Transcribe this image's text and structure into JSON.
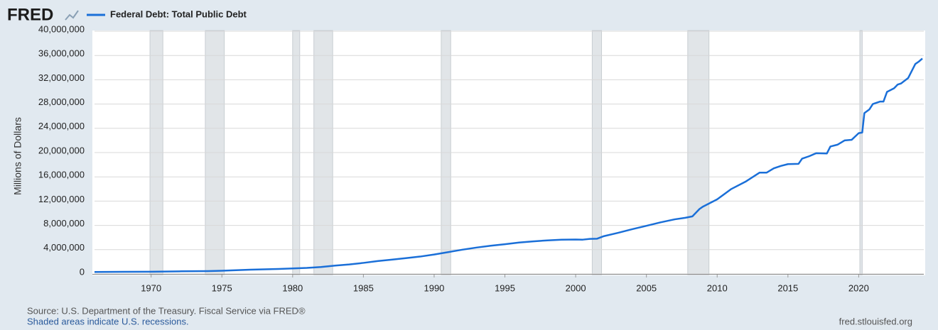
{
  "logo": "FRED",
  "chart_data": {
    "type": "line",
    "y_label": "Millions of Dollars",
    "x": [
      1966,
      1968,
      1970,
      1972,
      1974,
      1975,
      1977,
      1979,
      1980,
      1981,
      1982,
      1983,
      1984,
      1985,
      1986,
      1987,
      1988,
      1989,
      1990,
      1991,
      1992,
      1993,
      1994,
      1995,
      1996,
      1997,
      1998,
      1999,
      2000,
      2000.5,
      2001,
      2001.5,
      2002,
      2003,
      2004,
      2005,
      2006,
      2007,
      2007.75,
      2008.25,
      2008.75,
      2009,
      2010,
      2011,
      2012,
      2013,
      2013.5,
      2014,
      2014.5,
      2015,
      2015.75,
      2016,
      2016.5,
      2017,
      2017.75,
      2018,
      2018.5,
      2019,
      2019.5,
      2020,
      2020.25,
      2020.4,
      2020.75,
      2021,
      2021.5,
      2021.75,
      2022,
      2022.5,
      2022.75,
      2023,
      2023.5,
      2024,
      2024.25,
      2024.5
    ],
    "series": [
      {
        "name": "Federal Debt: Total Public Debt",
        "color": "#1a6fd8",
        "values": [
          320000,
          345000,
          370000,
          430000,
          475000,
          530000,
          700000,
          820000,
          900000,
          990000,
          1140000,
          1380000,
          1570000,
          1820000,
          2120000,
          2350000,
          2600000,
          2860000,
          3200000,
          3600000,
          4000000,
          4350000,
          4650000,
          4900000,
          5180000,
          5370000,
          5530000,
          5650000,
          5680000,
          5650000,
          5770000,
          5800000,
          6230000,
          6780000,
          7380000,
          7930000,
          8500000,
          9000000,
          9250000,
          9490000,
          10700000,
          11100000,
          12300000,
          14000000,
          15200000,
          16700000,
          16700000,
          17400000,
          17800000,
          18100000,
          18150000,
          19000000,
          19400000,
          19900000,
          19850000,
          21000000,
          21300000,
          22000000,
          22100000,
          23200000,
          23300000,
          26500000,
          27100000,
          28000000,
          28400000,
          28400000,
          30000000,
          30600000,
          31200000,
          31400000,
          32300000,
          34600000,
          35000000,
          35500000
        ]
      }
    ],
    "xlim": [
      1966,
      2024.6
    ],
    "xticks": [
      1970,
      1975,
      1980,
      1985,
      1990,
      1995,
      2000,
      2005,
      2010,
      2015,
      2020
    ],
    "ylim": [
      0,
      40000000
    ],
    "yticks": [
      0,
      {
        "value": 4000000,
        "label": "4,000,000"
      },
      {
        "value": 8000000,
        "label": "8,000,000"
      },
      {
        "value": 12000000,
        "label": "12,000,000"
      },
      {
        "value": 16000000,
        "label": "16,000,000"
      },
      {
        "value": 20000000,
        "label": "20,000,000"
      },
      {
        "value": 24000000,
        "label": "24,000,000"
      },
      {
        "value": 28000000,
        "label": "28,000,000"
      },
      {
        "value": 32000000,
        "label": "32,000,000"
      },
      {
        "value": 36000000,
        "label": "36,000,000"
      },
      {
        "value": 40000000,
        "label": "40,000,000"
      }
    ],
    "grid": true,
    "recessions": [
      [
        1969.92,
        1970.83
      ],
      [
        1973.83,
        1975.17
      ],
      [
        1980.0,
        1980.5
      ],
      [
        1981.5,
        1982.83
      ],
      [
        1990.5,
        1991.17
      ],
      [
        2001.17,
        2001.83
      ],
      [
        2007.92,
        2009.42
      ],
      [
        2020.08,
        2020.25
      ]
    ],
    "recession_color": "#e1e5e8"
  },
  "footer": {
    "source": "Source: U.S. Department of the Treasury. Fiscal Service via FRED®",
    "note": "Shaded areas indicate U.S. recessions.",
    "site": "fred.stlouisfed.org"
  }
}
